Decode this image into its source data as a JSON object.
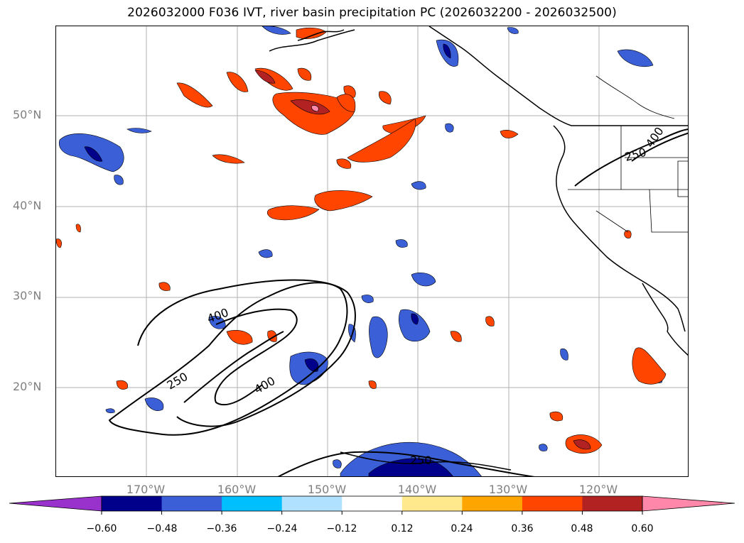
{
  "title": "2026032000 F036 IVT, river basin precipitation PC (2026032200 - 2026032500)",
  "map": {
    "projection": "mercator",
    "extent": {
      "lon_min": -180,
      "lon_max": -110,
      "lat_min": 10,
      "lat_max": 60
    },
    "lat_ticks": [
      {
        "value": 50,
        "label": "50°N"
      },
      {
        "value": 40,
        "label": "40°N"
      },
      {
        "value": 30,
        "label": "30°N"
      },
      {
        "value": 20,
        "label": "20°N"
      }
    ],
    "lon_ticks": [
      {
        "value": -170,
        "label": "170°W"
      },
      {
        "value": -160,
        "label": "160°W"
      },
      {
        "value": -150,
        "label": "150°W"
      },
      {
        "value": -140,
        "label": "140°W"
      },
      {
        "value": -130,
        "label": "130°W"
      },
      {
        "value": -120,
        "label": "120°W"
      }
    ],
    "ivt_contour_labels": [
      "400",
      "250",
      "400",
      "250",
      "250",
      "400"
    ],
    "contour_color": "#000000",
    "gridline_color": "#b0b0b0",
    "tick_label_color": "#7f7f7f"
  },
  "colorbar": {
    "levels": [
      -0.6,
      -0.48,
      -0.36,
      -0.24,
      -0.12,
      0.12,
      0.24,
      0.36,
      0.48,
      0.6
    ],
    "tick_labels": [
      "−0.60",
      "−0.48",
      "−0.36",
      "−0.24",
      "−0.12",
      "0.12",
      "0.24",
      "0.36",
      "0.48",
      "0.60"
    ],
    "under_color": "#9932cc",
    "over_color": "#ff88aa",
    "colors": [
      "#00008b",
      "#3b5fd6",
      "#00bfff",
      "#b0e2ff",
      "#ffffff",
      "#ffe98c",
      "#ffa500",
      "#ff4500",
      "#b22222",
      "#ff88aa"
    ]
  }
}
